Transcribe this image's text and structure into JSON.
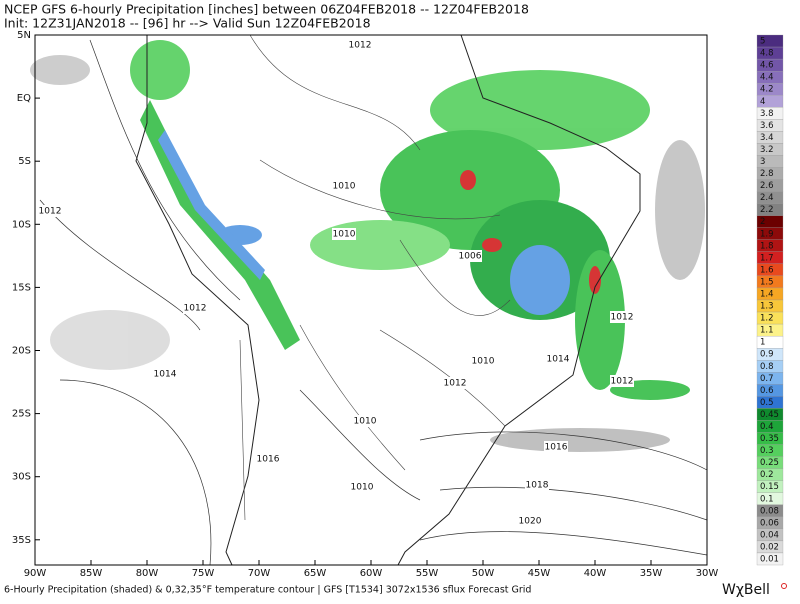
{
  "header": {
    "line1": "NCEP GFS 6-hourly Precipitation [inches] between 06Z04FEB2018 -- 12Z04FEB2018",
    "line2": "Init: 12Z31JAN2018 -- [96] hr --> Valid Sun 12Z04FEB2018"
  },
  "lat_labels": [
    "5N",
    "EQ",
    "5S",
    "10S",
    "15S",
    "20S",
    "25S",
    "30S",
    "35S"
  ],
  "lon_labels": [
    "90W",
    "85W",
    "80W",
    "75W",
    "70W",
    "65W",
    "60W",
    "55W",
    "50W",
    "45W",
    "40W",
    "35W",
    "30W"
  ],
  "isobar_labels": [
    "1012",
    "1010",
    "1012",
    "1010",
    "1006",
    "1012",
    "1014",
    "1010",
    "1014",
    "1012",
    "1012",
    "1012",
    "1010",
    "1016",
    "1016",
    "1018",
    "1010",
    "1020"
  ],
  "colorbar": {
    "labels": [
      5,
      4.8,
      4.6,
      4.4,
      4.2,
      4,
      3.8,
      3.6,
      3.4,
      3.2,
      3,
      2.8,
      2.6,
      2.4,
      2.2,
      2,
      1.9,
      1.8,
      1.7,
      1.6,
      1.5,
      1.4,
      1.3,
      1.2,
      1.1,
      1,
      0.9,
      0.8,
      0.7,
      0.6,
      0.5,
      0.45,
      0.4,
      0.35,
      0.3,
      0.25,
      0.2,
      0.15,
      0.1,
      0.08,
      0.06,
      0.04,
      0.02,
      0.01
    ],
    "colors": [
      "#4b2c7f",
      "#5e3f95",
      "#7256a8",
      "#876fba",
      "#9c88c9",
      "#b2a2d8",
      "#f2f2f2",
      "#e4e4e4",
      "#d6d6d6",
      "#c8c8c8",
      "#bababa",
      "#acacac",
      "#9e9e9e",
      "#909090",
      "#828282",
      "#6b0000",
      "#8c0a0a",
      "#b01414",
      "#d22020",
      "#e84a1e",
      "#f27a1e",
      "#f6a623",
      "#f8c73a",
      "#fae15a",
      "#fcf28a",
      "#ffffff",
      "#cfe6fa",
      "#a6cff5",
      "#7db5ee",
      "#5597e2",
      "#2f74d2",
      "#0f8a2e",
      "#1ea53a",
      "#36bd48",
      "#55cf5e",
      "#78dd7a",
      "#9ee89c",
      "#c2f1bf",
      "#e2f8df",
      "#8c8c8c",
      "#a8a8a8",
      "#c2c2c2",
      "#dadada",
      "#f2f2f2"
    ]
  },
  "footer": "6-Hourly Precipitation (shaded) & 0,32,35°F temperature contour | GFS [T1534] 3072x1536 sflux Forecast Grid",
  "logo": "WχBell"
}
